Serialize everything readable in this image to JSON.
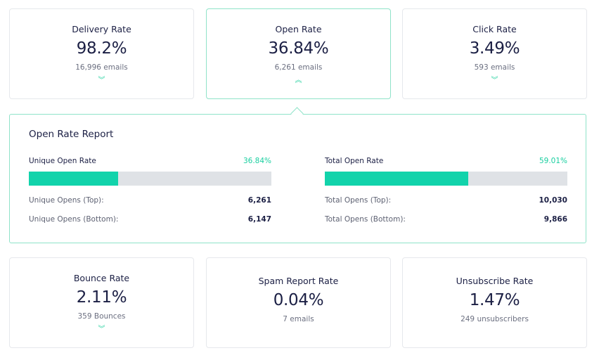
{
  "top_cards": [
    {
      "title": "Delivery Rate",
      "value": "98.2%",
      "sub": "16,996 emails",
      "chevron": "chevron-double-down-icon"
    },
    {
      "title": "Open Rate",
      "value": "36.84%",
      "sub": "6,261 emails",
      "chevron": "chevron-double-up-icon"
    },
    {
      "title": "Click Rate",
      "value": "3.49%",
      "sub": "593 emails",
      "chevron": "chevron-double-down-icon"
    }
  ],
  "report": {
    "title": "Open Rate Report",
    "unique": {
      "label": "Unique Open Rate",
      "percent": "36.84%",
      "fill": 36.84,
      "rows": [
        {
          "k": "Unique Opens (Top):",
          "v": "6,261"
        },
        {
          "k": "Unique Opens (Bottom):",
          "v": "6,147"
        }
      ]
    },
    "total": {
      "label": "Total Open Rate",
      "percent": "59.01%",
      "fill": 59.01,
      "rows": [
        {
          "k": "Total Opens (Top):",
          "v": "10,030"
        },
        {
          "k": "Total Opens (Bottom):",
          "v": "9,866"
        }
      ]
    }
  },
  "bottom_cards": [
    {
      "title": "Bounce Rate",
      "value": "2.11%",
      "sub": "359 Bounces",
      "chevron": "chevron-double-down-icon"
    },
    {
      "title": "Spam Report Rate",
      "value": "0.04%",
      "sub": "7 emails"
    },
    {
      "title": "Unsubscribe Rate",
      "value": "1.47%",
      "sub": "249 unsubscribers"
    }
  ],
  "colors": {
    "accent": "#12d3ab",
    "text": "#1b1f44",
    "track": "#dfe2e6"
  }
}
